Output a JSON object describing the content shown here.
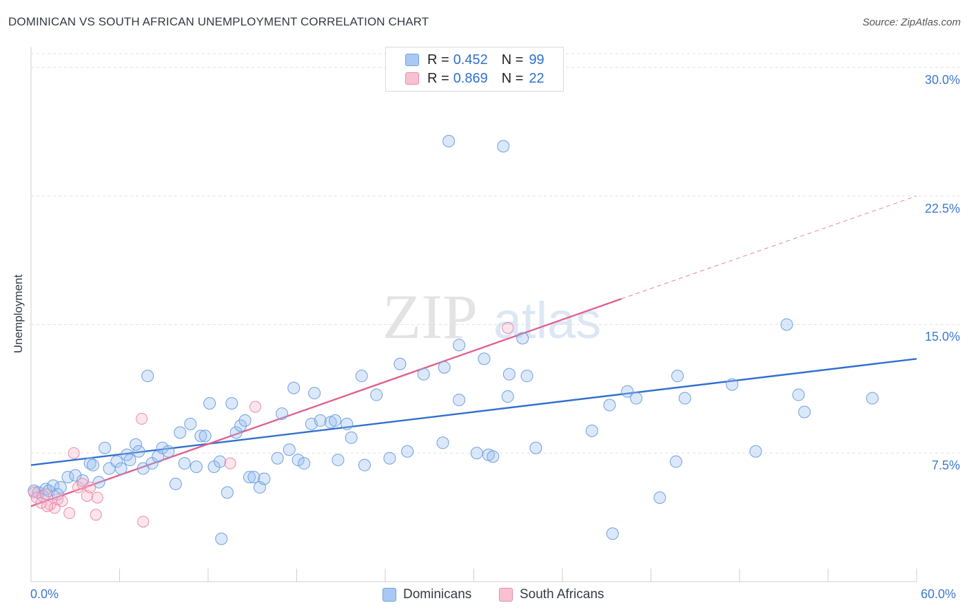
{
  "header": {
    "title": "DOMINICAN VS SOUTH AFRICAN UNEMPLOYMENT CORRELATION CHART",
    "source": "Source: ZipAtlas.com"
  },
  "watermark": {
    "zip": "ZIP",
    "atlas": "atlas"
  },
  "legend": {
    "rows": [
      {
        "r_label": "R =",
        "r_value": "0.452",
        "n_label": "N =",
        "n_value": "99",
        "color": "#a9c8f2",
        "border": "#6fa0e0"
      },
      {
        "r_label": "R =",
        "r_value": "0.869",
        "n_label": "N =",
        "n_value": "22",
        "color": "#f8c1d2",
        "border": "#e98aa8"
      }
    ]
  },
  "bottom_legend": [
    {
      "label": "Dominicans",
      "color": "#a9c8f2",
      "border": "#6fa0e0"
    },
    {
      "label": "South Africans",
      "color": "#f8c1d2",
      "border": "#e98aa8"
    }
  ],
  "colors": {
    "blue_line": "#2f6fce",
    "pink_line": "#e0608e",
    "blue_fill": "rgba(150,190,240,0.35)",
    "blue_stroke": "#6f9fdc",
    "pink_fill": "rgba(248,180,200,0.35)",
    "pink_stroke": "#e98aa8",
    "grid": "#e1e1e1",
    "axis_text": "#3c78d0"
  },
  "chart_data": {
    "type": "scatter",
    "title": "DOMINICAN VS SOUTH AFRICAN UNEMPLOYMENT CORRELATION CHART",
    "xlabel": "",
    "ylabel": "Unemployment",
    "xlim": [
      0,
      60
    ],
    "ylim": [
      0,
      30.8
    ],
    "x_tick_labels": [
      "0.0%",
      "60.0%"
    ],
    "y_ticks": [
      7.5,
      15.0,
      22.5,
      30.0
    ],
    "y_tick_labels": [
      "7.5%",
      "15.0%",
      "22.5%",
      "30.0%"
    ],
    "grid": "horizontal dashed",
    "legend_position": "top-center",
    "series": [
      {
        "name": "Dominicans",
        "points": [
          [
            0.2,
            5.3
          ],
          [
            0.5,
            5.2
          ],
          [
            0.8,
            5.0
          ],
          [
            1.0,
            5.4
          ],
          [
            1.2,
            5.3
          ],
          [
            1.5,
            5.6
          ],
          [
            1.8,
            5.1
          ],
          [
            2.0,
            5.5
          ],
          [
            2.5,
            6.1
          ],
          [
            3.0,
            6.2
          ],
          [
            3.5,
            5.9
          ],
          [
            4.0,
            6.9
          ],
          [
            4.2,
            6.8
          ],
          [
            4.6,
            5.8
          ],
          [
            5.0,
            7.8
          ],
          [
            5.3,
            6.6
          ],
          [
            5.8,
            7.0
          ],
          [
            6.1,
            6.6
          ],
          [
            6.5,
            7.4
          ],
          [
            6.7,
            7.1
          ],
          [
            7.1,
            8.0
          ],
          [
            7.3,
            7.6
          ],
          [
            7.6,
            6.6
          ],
          [
            7.9,
            12.0
          ],
          [
            8.2,
            6.9
          ],
          [
            8.6,
            7.3
          ],
          [
            8.9,
            7.8
          ],
          [
            9.3,
            7.6
          ],
          [
            9.8,
            5.7
          ],
          [
            10.1,
            8.7
          ],
          [
            10.4,
            6.9
          ],
          [
            10.8,
            9.2
          ],
          [
            11.2,
            6.7
          ],
          [
            11.5,
            8.5
          ],
          [
            11.8,
            8.5
          ],
          [
            12.1,
            10.4
          ],
          [
            12.4,
            6.7
          ],
          [
            12.8,
            7.0
          ],
          [
            13.3,
            5.2
          ],
          [
            13.6,
            10.4
          ],
          [
            13.9,
            8.7
          ],
          [
            14.2,
            9.1
          ],
          [
            14.5,
            9.4
          ],
          [
            14.8,
            6.1
          ],
          [
            15.1,
            6.1
          ],
          [
            15.5,
            5.5
          ],
          [
            15.8,
            6.0
          ],
          [
            16.7,
            7.2
          ],
          [
            17.0,
            9.8
          ],
          [
            17.5,
            7.7
          ],
          [
            17.8,
            11.3
          ],
          [
            18.1,
            7.1
          ],
          [
            18.5,
            6.9
          ],
          [
            19.0,
            9.2
          ],
          [
            19.2,
            11.0
          ],
          [
            19.6,
            9.4
          ],
          [
            20.3,
            9.3
          ],
          [
            20.6,
            9.4
          ],
          [
            20.8,
            7.1
          ],
          [
            21.4,
            9.2
          ],
          [
            21.7,
            8.4
          ],
          [
            22.4,
            12.0
          ],
          [
            22.6,
            6.8
          ],
          [
            23.4,
            10.9
          ],
          [
            24.3,
            7.2
          ],
          [
            25.0,
            12.7
          ],
          [
            25.5,
            7.6
          ],
          [
            26.6,
            12.1
          ],
          [
            27.9,
            8.1
          ],
          [
            28.0,
            12.5
          ],
          [
            28.3,
            25.7
          ],
          [
            29.0,
            10.6
          ],
          [
            29.0,
            13.8
          ],
          [
            30.2,
            7.5
          ],
          [
            30.7,
            13.0
          ],
          [
            31.0,
            7.4
          ],
          [
            31.3,
            7.3
          ],
          [
            32.0,
            25.4
          ],
          [
            32.3,
            10.8
          ],
          [
            32.4,
            12.1
          ],
          [
            33.3,
            14.2
          ],
          [
            33.6,
            12.0
          ],
          [
            34.2,
            7.8
          ],
          [
            38.0,
            8.8
          ],
          [
            39.2,
            10.3
          ],
          [
            39.4,
            2.8
          ],
          [
            40.4,
            11.1
          ],
          [
            41.0,
            10.7
          ],
          [
            42.6,
            4.9
          ],
          [
            43.7,
            7.0
          ],
          [
            43.8,
            12.0
          ],
          [
            44.3,
            10.7
          ],
          [
            47.5,
            11.5
          ],
          [
            49.1,
            7.6
          ],
          [
            51.2,
            15.0
          ],
          [
            52.0,
            10.9
          ],
          [
            52.4,
            9.9
          ],
          [
            57.0,
            10.7
          ],
          [
            12.9,
            2.5
          ]
        ]
      },
      {
        "name": "South Africans",
        "points": [
          [
            0.2,
            5.2
          ],
          [
            0.4,
            4.9
          ],
          [
            0.7,
            4.6
          ],
          [
            1.0,
            5.1
          ],
          [
            1.3,
            4.5
          ],
          [
            1.6,
            4.3
          ],
          [
            1.8,
            4.8
          ],
          [
            2.1,
            4.7
          ],
          [
            2.6,
            4.0
          ],
          [
            2.9,
            7.5
          ],
          [
            3.2,
            5.5
          ],
          [
            3.5,
            5.7
          ],
          [
            3.8,
            5.0
          ],
          [
            4.0,
            5.5
          ],
          [
            4.5,
            4.9
          ],
          [
            4.4,
            3.9
          ],
          [
            7.5,
            9.5
          ],
          [
            7.6,
            3.5
          ],
          [
            13.5,
            6.9
          ],
          [
            15.2,
            10.2
          ],
          [
            32.3,
            14.8
          ],
          [
            1.1,
            4.4
          ]
        ]
      }
    ],
    "trend_lines": [
      {
        "series": "Dominicans",
        "x": [
          0,
          60
        ],
        "y": [
          6.8,
          13.0
        ]
      },
      {
        "series": "South Africans",
        "x": [
          0,
          40
        ],
        "y": [
          4.4,
          16.5
        ],
        "dashed_extension": {
          "x": [
            40,
            60
          ],
          "y": [
            16.5,
            22.5
          ]
        }
      }
    ]
  }
}
